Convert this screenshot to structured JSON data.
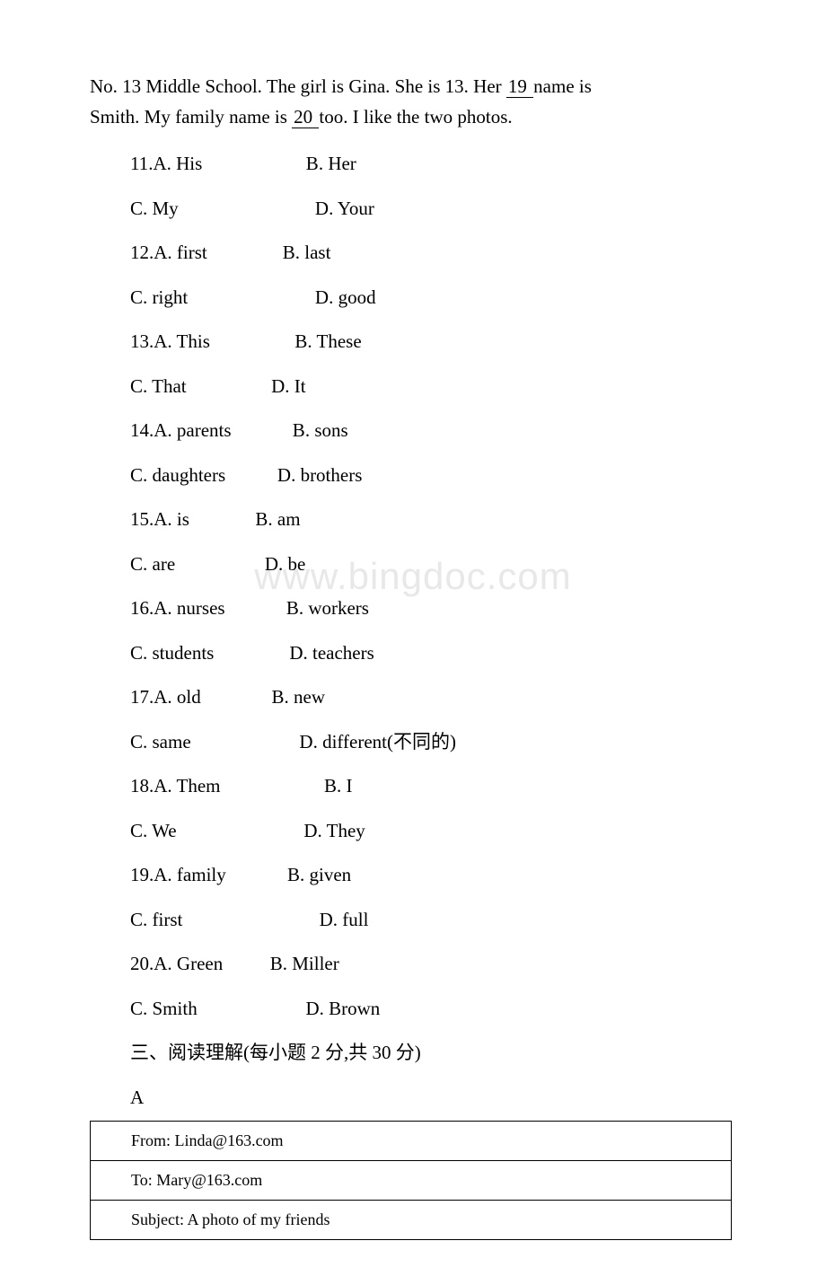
{
  "passage": {
    "line1_part1": "No. 13 Middle School. The girl is Gina. She is 13. Her ",
    "blank19": "   19   ",
    "line1_part2": " name is",
    "line2_part1": "Smith. My family name is ",
    "blank20": "   20   ",
    "line2_part2": " too. I like the two photos."
  },
  "questions": [
    {
      "rowA": "11.A. His                      B. Her",
      "rowB": "C. My                             D. Your"
    },
    {
      "rowA": "12.A. first                B. last",
      "rowB": "C. right                           D. good"
    },
    {
      "rowA": "13.A. This                  B. These",
      "rowB": "C. That                  D. It"
    },
    {
      "rowA": "14.A. parents             B. sons",
      "rowB": "C. daughters           D. brothers"
    },
    {
      "rowA": "15.A. is              B. am",
      "rowB": "C. are                   D. be"
    },
    {
      "rowA": "16.A. nurses             B. workers",
      "rowB": "C. students                D. teachers"
    },
    {
      "rowA": "17.A. old               B. new",
      "rowB": "C. same                       D. different(不同的)"
    },
    {
      "rowA": "18.A. Them                      B. I",
      "rowB": "C. We                           D. They"
    },
    {
      "rowA": "19.A. family             B. given",
      "rowB": "C. first                             D. full"
    },
    {
      "rowA": "20.A. Green          B. Miller",
      "rowB": "C. Smith                       D. Brown"
    }
  ],
  "section3_title": "三、阅读理解(每小题 2 分,共 30 分)",
  "section3_label": "A",
  "email": {
    "from": "From: Linda@163.com",
    "to": "To: Mary@163.com",
    "subject": "Subject: A photo of my friends"
  },
  "watermark": "www.bingdoc.com",
  "colors": {
    "text": "#000000",
    "background": "#ffffff",
    "watermark": "#e8e8e8",
    "border": "#000000"
  },
  "typography": {
    "body_fontsize": 21,
    "table_fontsize": 18,
    "watermark_fontsize": 42,
    "font_family": "Times New Roman"
  }
}
